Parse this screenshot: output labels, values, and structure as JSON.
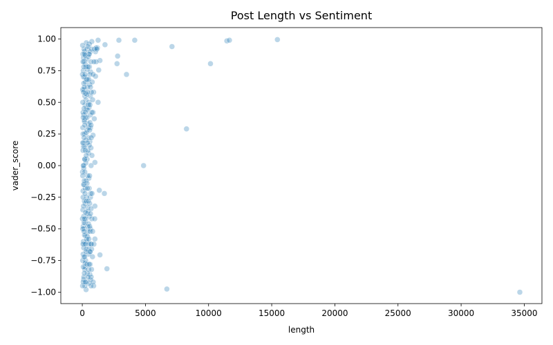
{
  "chart_data": {
    "type": "scatter",
    "title": "Post Length vs Sentiment",
    "xlabel": "length",
    "ylabel": "vader_score",
    "xlim": [
      -1700,
      36400
    ],
    "ylim": [
      -1.09,
      1.09
    ],
    "xticks": [
      0,
      5000,
      10000,
      15000,
      20000,
      25000,
      30000,
      35000
    ],
    "xtick_labels": [
      "0",
      "5000",
      "10000",
      "15000",
      "20000",
      "25000",
      "30000",
      "35000"
    ],
    "yticks": [
      -1.0,
      -0.75,
      -0.5,
      -0.25,
      0.0,
      0.25,
      0.5,
      0.75,
      1.0
    ],
    "ytick_labels": [
      "−1.00",
      "−0.75",
      "−0.50",
      "−0.25",
      "0.00",
      "0.25",
      "0.50",
      "0.75",
      "1.00"
    ],
    "grid": false,
    "marker_color": "#1f77b4",
    "marker_alpha": 0.3,
    "points": [
      [
        2900,
        0.99
      ],
      [
        4150,
        0.99
      ],
      [
        7100,
        0.94
      ],
      [
        11450,
        0.985
      ],
      [
        11650,
        0.99
      ],
      [
        15450,
        0.995
      ],
      [
        2800,
        0.865
      ],
      [
        2750,
        0.805
      ],
      [
        3500,
        0.72
      ],
      [
        10150,
        0.805
      ],
      [
        8250,
        0.29
      ],
      [
        4850,
        0.0
      ],
      [
        6700,
        -0.975
      ],
      [
        34650,
        -1.0
      ],
      [
        1750,
        -0.22
      ],
      [
        1350,
        -0.195
      ],
      [
        1950,
        -0.815
      ],
      [
        1400,
        -0.705
      ],
      [
        1800,
        0.955
      ],
      [
        1250,
        0.99
      ],
      [
        1400,
        0.83
      ],
      [
        1300,
        0.755
      ],
      [
        1250,
        0.5
      ],
      [
        1000,
        0.025
      ],
      [
        1000,
        -0.32
      ],
      [
        1000,
        -0.58
      ],
      [
        900,
        -0.95
      ],
      [
        950,
        0.37
      ],
      [
        850,
        0.24
      ],
      [
        850,
        0.42
      ],
      [
        900,
        0.58
      ],
      [
        1050,
        0.705
      ],
      [
        1050,
        0.9
      ],
      [
        1200,
        0.93
      ],
      [
        1100,
        0.82
      ],
      [
        750,
        0.98
      ],
      [
        700,
        -0.95
      ],
      [
        650,
        -0.25
      ],
      [
        700,
        0.0
      ],
      [
        650,
        0.3
      ],
      [
        600,
        0.19
      ],
      [
        650,
        -0.5
      ],
      [
        700,
        -0.62
      ],
      [
        620,
        -0.78
      ],
      [
        600,
        -0.86
      ],
      [
        640,
        0.55
      ],
      [
        580,
        0.64
      ],
      [
        660,
        0.74
      ],
      [
        560,
        0.96
      ],
      [
        520,
        0.88
      ],
      [
        540,
        0.46
      ],
      [
        500,
        0.1
      ],
      [
        520,
        -0.1
      ],
      [
        560,
        -0.4
      ],
      [
        500,
        -0.7
      ],
      [
        540,
        -0.93
      ],
      [
        460,
        0.33
      ],
      [
        420,
        -0.33
      ],
      [
        380,
        0.05
      ],
      [
        360,
        -0.6
      ],
      [
        400,
        0.68
      ],
      [
        300,
        -0.98
      ],
      [
        320,
        0.97
      ],
      [
        280,
        0.2
      ],
      [
        240,
        -0.3
      ],
      [
        200,
        0.55
      ],
      [
        220,
        -0.8
      ],
      [
        180,
        0.9
      ],
      [
        150,
        -0.5
      ],
      [
        130,
        0.0
      ],
      [
        110,
        0.4
      ],
      [
        100,
        -0.9
      ],
      [
        80,
        0.75
      ],
      [
        60,
        -0.2
      ],
      [
        40,
        0.3
      ],
      [
        20,
        -0.05
      ],
      [
        50,
        0.88
      ],
      [
        70,
        -0.7
      ],
      [
        90,
        0.15
      ],
      [
        120,
        -0.4
      ],
      [
        140,
        0.6
      ],
      [
        160,
        -0.15
      ],
      [
        190,
        0.25
      ],
      [
        210,
        -0.95
      ],
      [
        250,
        0.8
      ],
      [
        270,
        -0.55
      ],
      [
        330,
        0.45
      ],
      [
        350,
        -0.25
      ],
      [
        390,
        0.92
      ],
      [
        410,
        -0.85
      ],
      [
        440,
        0.12
      ],
      [
        480,
        -0.66
      ],
      [
        30,
        0.6
      ],
      [
        45,
        -0.35
      ],
      [
        65,
        0.42
      ],
      [
        85,
        -0.6
      ],
      [
        105,
        0.18
      ],
      [
        125,
        -0.88
      ],
      [
        145,
        0.82
      ],
      [
        165,
        -0.28
      ],
      [
        185,
        0.05
      ],
      [
        205,
        0.7
      ],
      [
        225,
        -0.45
      ],
      [
        245,
        0.38
      ],
      [
        265,
        -0.75
      ],
      [
        285,
        0.52
      ],
      [
        305,
        -0.12
      ],
      [
        325,
        0.84
      ],
      [
        345,
        -0.92
      ],
      [
        365,
        0.28
      ],
      [
        385,
        -0.38
      ],
      [
        405,
        0.62
      ],
      [
        425,
        -0.08
      ],
      [
        445,
        0.94
      ],
      [
        465,
        -0.52
      ],
      [
        485,
        0.22
      ],
      [
        505,
        -0.82
      ],
      [
        525,
        0.5
      ],
      [
        545,
        -0.18
      ],
      [
        565,
        0.78
      ],
      [
        585,
        -0.3
      ],
      [
        605,
        0.34
      ],
      [
        625,
        -0.68
      ],
      [
        645,
        0.9
      ],
      [
        665,
        -0.22
      ],
      [
        685,
        0.14
      ],
      [
        705,
        -0.88
      ],
      [
        725,
        0.58
      ],
      [
        745,
        -0.42
      ],
      [
        765,
        0.08
      ],
      [
        785,
        0.66
      ],
      [
        805,
        -0.72
      ],
      [
        35,
        -0.75
      ],
      [
        55,
        0.12
      ],
      [
        75,
        -0.48
      ],
      [
        95,
        0.7
      ],
      [
        115,
        -0.02
      ],
      [
        135,
        0.92
      ],
      [
        155,
        -0.62
      ],
      [
        175,
        0.36
      ],
      [
        195,
        -0.82
      ],
      [
        215,
        0.48
      ],
      [
        235,
        -0.18
      ],
      [
        255,
        0.66
      ],
      [
        275,
        0.02
      ],
      [
        295,
        -0.42
      ],
      [
        315,
        0.26
      ],
      [
        335,
        -0.66
      ],
      [
        355,
        0.56
      ],
      [
        375,
        -0.14
      ],
      [
        395,
        0.76
      ],
      [
        415,
        -0.56
      ],
      [
        435,
        0.44
      ],
      [
        455,
        -0.36
      ],
      [
        475,
        0.86
      ],
      [
        495,
        -0.46
      ],
      [
        515,
        0.3
      ],
      [
        535,
        -0.62
      ],
      [
        555,
        0.16
      ],
      [
        575,
        -0.08
      ],
      [
        595,
        0.72
      ],
      [
        615,
        -0.52
      ],
      [
        635,
        0.4
      ],
      [
        655,
        -0.9
      ],
      [
        675,
        0.82
      ],
      [
        695,
        -0.34
      ],
      [
        715,
        0.22
      ],
      [
        735,
        -0.66
      ],
      [
        25,
        0.95
      ],
      [
        25,
        -0.95
      ],
      [
        40,
        0.5
      ],
      [
        40,
        -0.5
      ],
      [
        60,
        0.25
      ],
      [
        60,
        -0.25
      ],
      [
        80,
        0.0
      ],
      [
        80,
        -0.8
      ],
      [
        100,
        0.85
      ],
      [
        100,
        -0.15
      ],
      [
        120,
        0.65
      ],
      [
        120,
        -0.65
      ],
      [
        140,
        0.45
      ],
      [
        140,
        -0.45
      ],
      [
        160,
        0.35
      ],
      [
        160,
        -0.85
      ],
      [
        180,
        0.15
      ],
      [
        180,
        -0.55
      ],
      [
        200,
        0.05
      ],
      [
        200,
        -0.05
      ],
      [
        230,
        0.87
      ],
      [
        230,
        -0.77
      ],
      [
        260,
        0.57
      ],
      [
        260,
        -0.37
      ],
      [
        290,
        0.78
      ],
      [
        290,
        -0.68
      ],
      [
        310,
        0.08
      ],
      [
        310,
        -0.28
      ],
      [
        340,
        0.68
      ],
      [
        340,
        -0.58
      ],
      [
        370,
        0.38
      ],
      [
        370,
        -0.78
      ],
      [
        400,
        0.18
      ],
      [
        400,
        -0.18
      ],
      [
        430,
        0.58
      ],
      [
        430,
        -0.48
      ],
      [
        460,
        0.78
      ],
      [
        460,
        -0.88
      ],
      [
        490,
        0.48
      ],
      [
        490,
        -0.28
      ],
      [
        520,
        0.68
      ],
      [
        520,
        -0.58
      ],
      [
        550,
        0.88
      ],
      [
        550,
        -0.78
      ],
      [
        580,
        0.28
      ],
      [
        580,
        -0.48
      ],
      [
        610,
        0.48
      ],
      [
        610,
        -0.68
      ],
      [
        650,
        0.62
      ],
      [
        650,
        -0.38
      ],
      [
        690,
        0.32
      ],
      [
        690,
        -0.62
      ],
      [
        730,
        0.92
      ],
      [
        730,
        -0.82
      ],
      [
        770,
        0.42
      ],
      [
        770,
        -0.22
      ],
      [
        820,
        0.52
      ],
      [
        820,
        -0.52
      ],
      [
        860,
        0.72
      ],
      [
        860,
        -0.92
      ],
      [
        920,
        0.82
      ],
      [
        920,
        -0.62
      ],
      [
        960,
        0.92
      ],
      [
        980,
        -0.42
      ],
      [
        1100,
        0.93
      ],
      [
        1150,
        0.92
      ],
      [
        15,
        0.72
      ],
      [
        15,
        -0.42
      ],
      [
        35,
        0.18
      ],
      [
        35,
        -0.08
      ],
      [
        55,
        0.82
      ],
      [
        55,
        -0.62
      ],
      [
        75,
        0.38
      ],
      [
        75,
        -0.92
      ],
      [
        95,
        0.58
      ],
      [
        95,
        -0.32
      ],
      [
        115,
        0.78
      ],
      [
        115,
        -0.72
      ],
      [
        135,
        0.22
      ],
      [
        135,
        -0.52
      ],
      [
        155,
        0.62
      ],
      [
        155,
        -0.12
      ],
      [
        175,
        0.88
      ],
      [
        175,
        -0.42
      ],
      [
        195,
        0.32
      ],
      [
        195,
        -0.72
      ],
      [
        215,
        0.72
      ],
      [
        215,
        -0.22
      ],
      [
        235,
        0.12
      ],
      [
        235,
        -0.92
      ],
      [
        255,
        0.42
      ],
      [
        255,
        -0.62
      ]
    ]
  }
}
